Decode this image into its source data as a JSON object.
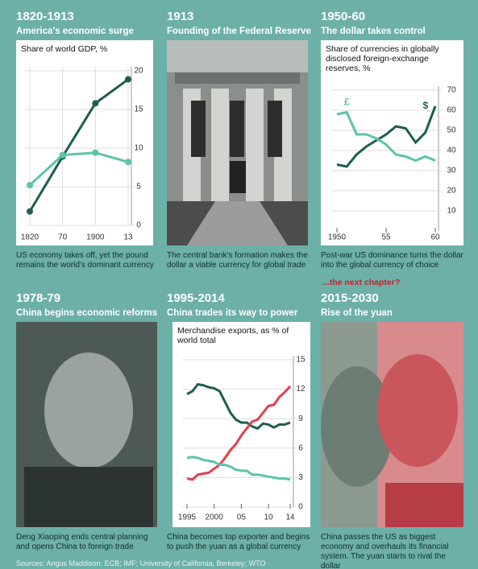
{
  "panels": [
    {
      "heading": "1820-1913",
      "subheading": "America's economic surge",
      "caption": "US economy takes off, yet the pound remains the world's dominant currency"
    },
    {
      "heading": "1913",
      "subheading": "Founding of the Federal Reserve",
      "caption": "The central bank's formation makes the dollar a viable currency for global trade"
    },
    {
      "heading": "1950-60",
      "subheading": "The dollar takes control",
      "caption": "Post-war US dominance turns the dollar into the global currency of choice"
    },
    {
      "heading": "1978-79",
      "subheading": "China begins economic reforms",
      "caption": "Deng Xiaoping ends central planning and opens China to foreign trade"
    },
    {
      "heading": "1995-2014",
      "subheading": "China trades its way to power",
      "caption": "China becomes top exporter and begins to push the yuan as a global currency"
    },
    {
      "teaser": "...the next chapter?",
      "heading": "2015-2030",
      "subheading": "Rise of the yuan",
      "caption": "China passes the US as biggest economy and overhauls its financial system. The yuan starts to rival the dollar"
    }
  ],
  "source": "Sources: Angus Maddison; ECB; IMF; University of California, Berkeley; WTO",
  "chart_data": [
    {
      "type": "line",
      "title": "Share of world GDP, %",
      "categories": [
        "1820",
        "70",
        "1900",
        "13"
      ],
      "series": [
        {
          "color": "#1e5e50",
          "values": [
            1.8,
            8.9,
            15.8,
            18.9
          ]
        },
        {
          "color": "#5cc4a8",
          "values": [
            5.2,
            9.1,
            9.4,
            8.2
          ]
        }
      ],
      "ylim": [
        0,
        20
      ],
      "yticks": [
        0,
        5,
        10,
        15,
        20
      ]
    },
    {
      "type": "line",
      "title": "Share of currencies in globally disclosed foreign-exchange reserves, %",
      "x": [
        1950,
        1951,
        1952,
        1953,
        1954,
        1955,
        1956,
        1957,
        1958,
        1959,
        1960
      ],
      "series": [
        {
          "color": "#1e5e50",
          "values": [
            33,
            32,
            38,
            42,
            45,
            48,
            52,
            51,
            44,
            49,
            62
          ]
        },
        {
          "color": "#5cc4a8",
          "values": [
            58,
            59,
            48,
            48,
            46,
            43,
            38,
            37,
            35,
            37,
            35
          ]
        }
      ],
      "annotations": [
        "£",
        "$"
      ],
      "xlim": [
        1950,
        1960
      ],
      "xticks": [
        1950,
        {
          "value": 1955,
          "label": "55"
        },
        {
          "value": 1960,
          "label": "60"
        }
      ],
      "ylim": [
        0,
        70
      ],
      "yticks": [
        10,
        20,
        30,
        40,
        50,
        60,
        70
      ]
    },
    {
      "type": "line",
      "title": "Merchandise exports, as % of world total",
      "x": [
        1995,
        1996,
        1997,
        1998,
        1999,
        2000,
        2001,
        2002,
        2003,
        2004,
        2005,
        2006,
        2007,
        2008,
        2009,
        2010,
        2011,
        2012,
        2013,
        2014
      ],
      "series": [
        {
          "color": "#1e5e50",
          "values": [
            11.5,
            11.8,
            12.5,
            12.4,
            12.2,
            12.1,
            11.8,
            10.7,
            9.6,
            8.9,
            8.6,
            8.6,
            8.2,
            8.0,
            8.5,
            8.4,
            8.1,
            8.4,
            8.4,
            8.6
          ]
        },
        {
          "color": "#e0414e",
          "values": [
            2.9,
            2.8,
            3.3,
            3.4,
            3.5,
            3.9,
            4.3,
            5.0,
            5.8,
            6.4,
            7.3,
            8.0,
            8.7,
            8.9,
            9.6,
            10.3,
            10.4,
            11.2,
            11.7,
            12.3
          ]
        },
        {
          "color": "#5cc4a8",
          "values": [
            5.0,
            5.1,
            5.0,
            4.8,
            4.7,
            4.6,
            4.3,
            4.3,
            4.1,
            3.8,
            3.7,
            3.7,
            3.3,
            3.3,
            3.2,
            3.1,
            3.0,
            2.9,
            2.9,
            2.8
          ]
        }
      ],
      "xlim": [
        1995,
        2014
      ],
      "xticks": [
        1995,
        2000,
        {
          "value": 2005,
          "label": "05"
        },
        {
          "value": 2010,
          "label": "10"
        },
        {
          "value": 2014,
          "label": "14"
        }
      ],
      "ylim": [
        0,
        15
      ],
      "yticks": [
        0,
        3,
        6,
        9,
        12,
        15
      ]
    }
  ]
}
